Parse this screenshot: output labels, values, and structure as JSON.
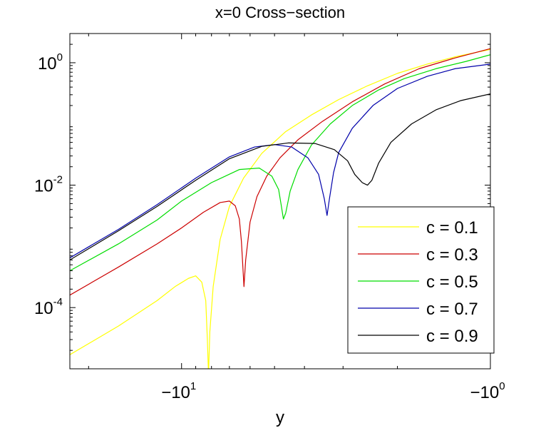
{
  "chart_data": {
    "type": "line",
    "title": "x=0 Cross−section",
    "xlabel": "y",
    "ylabel": "",
    "xscale": "log (negative values, tick labels show y)",
    "yscale": "log",
    "xlim": [
      -23,
      -1
    ],
    "ylim": [
      1e-05,
      3.0
    ],
    "xticks": [
      {
        "value": -10,
        "base": "−10",
        "exp": "1"
      },
      {
        "value": -1,
        "base": "−10",
        "exp": "0"
      }
    ],
    "yticks": [
      {
        "value": 0.0001,
        "base": "10",
        "exp": "-4"
      },
      {
        "value": 0.01,
        "base": "10",
        "exp": "-2"
      },
      {
        "value": 1,
        "base": "10",
        "exp": "0"
      }
    ],
    "grid": false,
    "legend_position": "bottom-right",
    "series": [
      {
        "name": "c = 0.1",
        "color": "#ffff00",
        "x": [
          -23,
          -16,
          -12,
          -10.5,
          -9.5,
          -9,
          -8.6,
          -8.35,
          -8.25,
          -8.18,
          -8.1,
          -7.9,
          -7.5,
          -7,
          -6.3,
          -5.5,
          -4.6,
          -3.8,
          -3.1,
          -2.5,
          -2,
          -1.6,
          -1.3,
          -1
        ],
        "y": [
          1.7e-05,
          5e-05,
          0.00013,
          0.00022,
          0.0003,
          0.00033,
          0.00026,
          0.00013,
          3e-05,
          8e-06,
          4e-05,
          0.00022,
          0.0013,
          0.0045,
          0.013,
          0.033,
          0.075,
          0.14,
          0.25,
          0.42,
          0.67,
          0.95,
          1.25,
          1.65
        ]
      },
      {
        "name": "c = 0.3",
        "color": "#cc0000",
        "x": [
          -23,
          -16,
          -12,
          -10,
          -8.5,
          -7.5,
          -7,
          -6.7,
          -6.5,
          -6.4,
          -6.35,
          -6.28,
          -6.2,
          -6,
          -5.7,
          -5.3,
          -4.8,
          -4.2,
          -3.5,
          -2.8,
          -2.2,
          -1.7,
          -1.3,
          -1
        ],
        "y": [
          0.00016,
          0.00046,
          0.0011,
          0.002,
          0.0036,
          0.0052,
          0.0055,
          0.0046,
          0.0028,
          0.0012,
          0.0006,
          0.00022,
          0.0006,
          0.0025,
          0.0065,
          0.014,
          0.028,
          0.055,
          0.11,
          0.23,
          0.45,
          0.8,
          1.2,
          1.7
        ]
      },
      {
        "name": "c = 0.5",
        "color": "#00dd00",
        "x": [
          -23,
          -16,
          -12,
          -10,
          -8,
          -6.5,
          -5.6,
          -5.1,
          -4.85,
          -4.75,
          -4.68,
          -4.6,
          -4.45,
          -4.2,
          -3.8,
          -3.3,
          -2.8,
          -2.3,
          -1.9,
          -1.5,
          -1.2,
          -1
        ],
        "y": [
          0.0004,
          0.0011,
          0.0027,
          0.0055,
          0.011,
          0.018,
          0.019,
          0.014,
          0.0085,
          0.0045,
          0.0028,
          0.0035,
          0.008,
          0.018,
          0.045,
          0.1,
          0.2,
          0.36,
          0.55,
          0.8,
          1.05,
          1.35
        ]
      },
      {
        "name": "c = 0.7",
        "color": "#0000aa",
        "x": [
          -23,
          -16,
          -12,
          -9,
          -7,
          -5.8,
          -5,
          -4.4,
          -3.9,
          -3.6,
          -3.45,
          -3.38,
          -3.32,
          -3.22,
          -3.1,
          -2.8,
          -2.4,
          -2,
          -1.6,
          -1.3,
          -1
        ],
        "y": [
          0.00065,
          0.0019,
          0.0048,
          0.013,
          0.029,
          0.042,
          0.046,
          0.042,
          0.028,
          0.015,
          0.006,
          0.0032,
          0.006,
          0.016,
          0.034,
          0.085,
          0.2,
          0.38,
          0.6,
          0.8,
          0.95
        ]
      },
      {
        "name": "c = 0.9",
        "color": "#000000",
        "x": [
          -23,
          -16,
          -12,
          -9,
          -7,
          -5.5,
          -4.5,
          -3.7,
          -3.2,
          -2.9,
          -2.75,
          -2.6,
          -2.5,
          -2.42,
          -2.3,
          -2.1,
          -1.8,
          -1.5,
          -1.25,
          -1
        ],
        "y": [
          0.0006,
          0.0018,
          0.0045,
          0.012,
          0.027,
          0.043,
          0.049,
          0.048,
          0.038,
          0.025,
          0.015,
          0.011,
          0.01,
          0.012,
          0.023,
          0.05,
          0.1,
          0.17,
          0.24,
          0.31
        ]
      }
    ]
  }
}
